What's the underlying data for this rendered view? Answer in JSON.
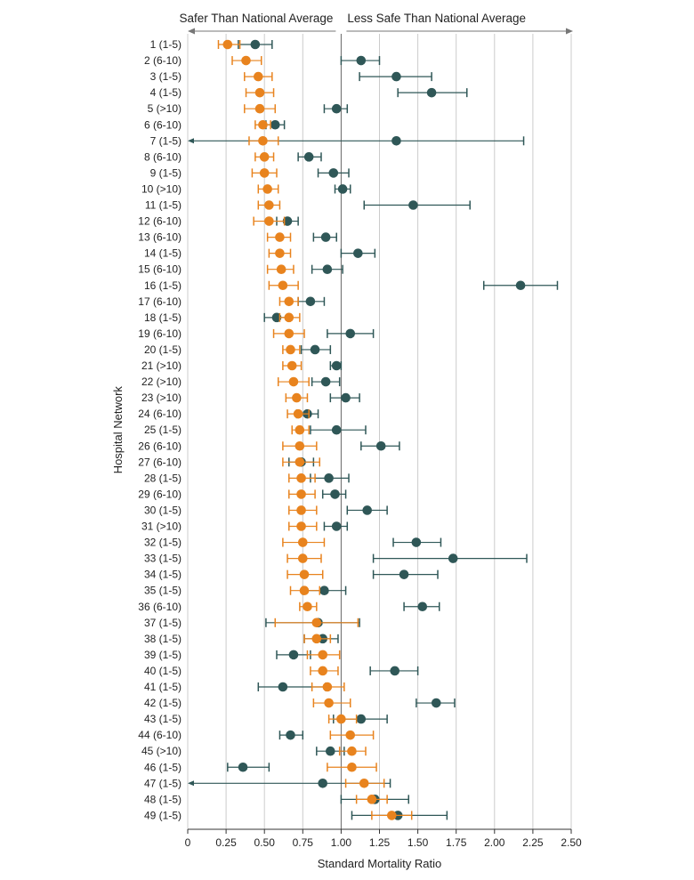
{
  "chart_data": {
    "type": "forest",
    "xlabel": "Standard Mortality Ratio",
    "ylabel": "Hospital Network",
    "xlim": [
      0,
      2.5
    ],
    "x_ticks": [
      "0",
      "0.25",
      "0.50",
      "0.75",
      "1.00",
      "1.25",
      "1.50",
      "1.75",
      "2.00",
      "2.25",
      "2.50"
    ],
    "x_tick_values": [
      0,
      0.25,
      0.5,
      0.75,
      1.0,
      1.25,
      1.5,
      1.75,
      2.0,
      2.25,
      2.5
    ],
    "reference_line": 1.0,
    "grid": "vertical",
    "banner_left": "Safer Than National Average",
    "banner_right": "Less Safe Than National Average",
    "colors": {
      "series_a": "#e8831e",
      "series_b": "#2f5757",
      "grid": "#cccccc",
      "reference": "#666666",
      "text": "#222222"
    },
    "categories": [
      "1 (1-5)",
      "2 (6-10)",
      "3 (1-5)",
      "4 (1-5)",
      "5 (>10)",
      "6 (6-10)",
      "7 (1-5)",
      "8 (6-10)",
      "9 (1-5)",
      "10 (>10)",
      "11 (1-5)",
      "12 (6-10)",
      "13 (6-10)",
      "14 (1-5)",
      "15 (6-10)",
      "16 (1-5)",
      "17 (6-10)",
      "18 (1-5)",
      "19 (6-10)",
      "20 (1-5)",
      "21 (>10)",
      "22 (>10)",
      "23 (>10)",
      "24 (6-10)",
      "25 (1-5)",
      "26 (6-10)",
      "27 (6-10)",
      "28 (1-5)",
      "29 (6-10)",
      "30 (1-5)",
      "31 (>10)",
      "32 (1-5)",
      "33 (1-5)",
      "34 (1-5)",
      "35 (1-5)",
      "36 (6-10)",
      "37 (1-5)",
      "38 (1-5)",
      "39 (1-5)",
      "40 (1-5)",
      "41 (1-5)",
      "42 (1-5)",
      "43 (1-5)",
      "44 (6-10)",
      "45 (>10)",
      "46 (1-5)",
      "47 (1-5)",
      "48 (1-5)",
      "49 (1-5)"
    ],
    "series": [
      {
        "color": "#2f5757",
        "values": [
          0.44,
          1.13,
          1.36,
          1.59,
          0.97,
          0.57,
          1.36,
          0.79,
          0.95,
          1.01,
          1.47,
          0.65,
          0.9,
          1.11,
          0.91,
          2.17,
          0.8,
          0.58,
          1.06,
          0.83,
          0.97,
          0.9,
          1.03,
          0.78,
          0.97,
          1.26,
          0.74,
          0.92,
          0.96,
          1.17,
          0.97,
          1.49,
          1.73,
          1.41,
          0.89,
          1.53,
          0.85,
          0.88,
          0.69,
          1.35,
          0.62,
          1.62,
          1.13,
          0.67,
          0.93,
          0.36,
          0.88,
          1.22,
          1.37
        ],
        "lower": [
          0.33,
          1.0,
          1.12,
          1.37,
          0.89,
          0.51,
          0.0,
          0.72,
          0.85,
          0.96,
          1.15,
          0.58,
          0.82,
          1.0,
          0.81,
          1.93,
          0.72,
          0.5,
          0.91,
          0.74,
          0.93,
          0.81,
          0.93,
          0.71,
          0.8,
          1.13,
          0.66,
          0.8,
          0.88,
          1.04,
          0.89,
          1.34,
          1.21,
          1.21,
          0.75,
          1.41,
          0.51,
          0.76,
          0.58,
          1.19,
          0.46,
          1.49,
          0.95,
          0.6,
          0.84,
          0.26,
          0.0,
          1.0,
          1.07
        ],
        "upper": [
          0.55,
          1.25,
          1.59,
          1.82,
          1.04,
          0.63,
          2.19,
          0.87,
          1.05,
          1.06,
          1.84,
          0.72,
          0.97,
          1.22,
          1.01,
          2.41,
          0.89,
          0.66,
          1.21,
          0.93,
          1.0,
          0.99,
          1.12,
          0.85,
          1.16,
          1.38,
          0.82,
          1.05,
          1.03,
          1.3,
          1.04,
          1.65,
          2.21,
          1.63,
          1.03,
          1.64,
          1.12,
          0.98,
          0.8,
          1.5,
          0.9,
          1.74,
          1.3,
          0.75,
          1.02,
          0.53,
          1.32,
          1.44,
          1.69
        ]
      },
      {
        "color": "#e8831e",
        "values": [
          0.26,
          0.38,
          0.46,
          0.47,
          0.47,
          0.49,
          0.49,
          0.5,
          0.5,
          0.52,
          0.53,
          0.53,
          0.6,
          0.6,
          0.61,
          0.62,
          0.66,
          0.66,
          0.66,
          0.67,
          0.68,
          0.69,
          0.71,
          0.72,
          0.73,
          0.73,
          0.73,
          0.74,
          0.74,
          0.74,
          0.74,
          0.75,
          0.75,
          0.76,
          0.76,
          0.78,
          0.84,
          0.84,
          0.88,
          0.88,
          0.91,
          0.92,
          1.0,
          1.06,
          1.07,
          1.07,
          1.15,
          1.2,
          1.33
        ],
        "lower": [
          0.2,
          0.29,
          0.37,
          0.38,
          0.37,
          0.44,
          0.4,
          0.44,
          0.42,
          0.46,
          0.46,
          0.43,
          0.52,
          0.53,
          0.52,
          0.53,
          0.6,
          0.6,
          0.56,
          0.62,
          0.62,
          0.59,
          0.64,
          0.65,
          0.68,
          0.62,
          0.62,
          0.66,
          0.66,
          0.66,
          0.66,
          0.62,
          0.65,
          0.65,
          0.67,
          0.73,
          0.57,
          0.76,
          0.78,
          0.8,
          0.81,
          0.82,
          0.92,
          0.93,
          0.99,
          0.91,
          1.03,
          1.1,
          1.2
        ],
        "upper": [
          0.34,
          0.48,
          0.55,
          0.56,
          0.57,
          0.54,
          0.59,
          0.56,
          0.58,
          0.59,
          0.6,
          0.63,
          0.67,
          0.67,
          0.69,
          0.72,
          0.72,
          0.73,
          0.76,
          0.73,
          0.74,
          0.79,
          0.78,
          0.79,
          0.79,
          0.84,
          0.86,
          0.83,
          0.83,
          0.84,
          0.84,
          0.89,
          0.87,
          0.88,
          0.86,
          0.84,
          1.11,
          0.93,
          0.99,
          0.98,
          1.02,
          1.06,
          1.1,
          1.21,
          1.16,
          1.23,
          1.28,
          1.3,
          1.46
        ]
      }
    ]
  }
}
